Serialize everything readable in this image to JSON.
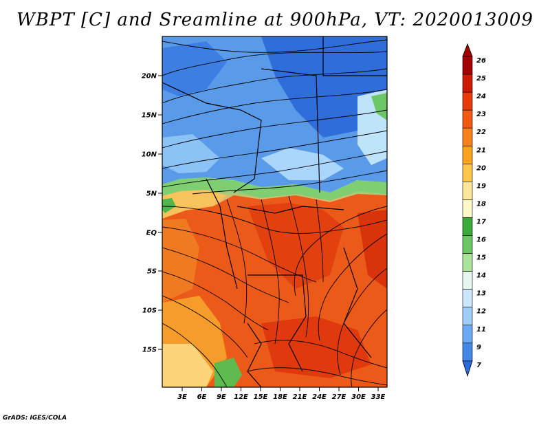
{
  "title": "WBPT [C] and Sreamline at 900hPa, VT: 2020013009",
  "credit": "GrADS: IGES/COLA",
  "lat_labels": [
    "20N",
    "15N",
    "10N",
    "5N",
    "EQ",
    "5S",
    "10S",
    "15S"
  ],
  "lon_labels": [
    "3E",
    "6E",
    "9E",
    "12E",
    "15E",
    "18E",
    "21E",
    "24E",
    "27E",
    "30E",
    "33E"
  ],
  "colorbar": {
    "labels": [
      "26",
      "25",
      "24",
      "23",
      "22",
      "21",
      "20",
      "19",
      "18",
      "17",
      "16",
      "15",
      "14",
      "13",
      "12",
      "11",
      "9",
      "7"
    ],
    "colors": [
      "#a50000",
      "#cc1a00",
      "#e83b0c",
      "#f25a12",
      "#f7821c",
      "#fba21f",
      "#fcc64a",
      "#fde79a",
      "#fdf9c8",
      "#3aaa3a",
      "#6cc866",
      "#a8e59a",
      "#e6f7f0",
      "#cde6fb",
      "#9fcdfa",
      "#6aaaf2",
      "#4489ea",
      "#2a6ade"
    ]
  },
  "map": {
    "lat_range": [
      -20,
      24.5
    ],
    "lon_range": [
      0,
      35.5
    ],
    "field": "wet-bulb potential temperature",
    "streamlines": "on"
  }
}
